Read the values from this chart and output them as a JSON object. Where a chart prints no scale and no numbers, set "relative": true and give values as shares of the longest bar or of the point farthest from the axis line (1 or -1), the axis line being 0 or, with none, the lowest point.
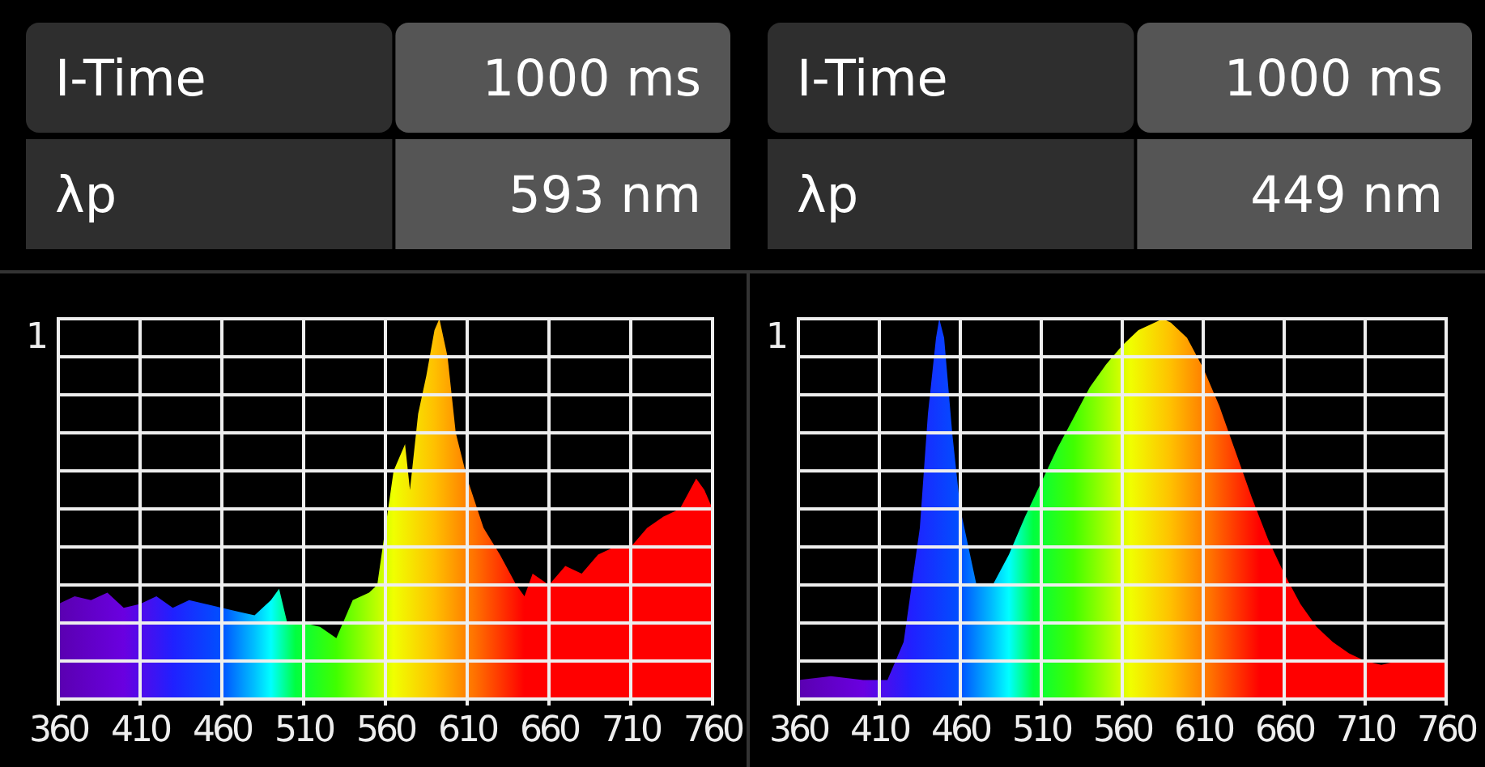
{
  "chart_data": [
    {
      "type": "other",
      "annotations": [
        "I-Time",
        "1000 ms",
        "λp",
        "593 nm"
      ]
    },
    {
      "type": "other",
      "annotations": [
        "I-Time",
        "1000 ms",
        "λp",
        "449 nm"
      ]
    },
    {
      "type": "area",
      "relative": true,
      "grid": true,
      "annotations": [
        "1"
      ],
      "xlim": [
        360,
        760
      ],
      "xticks": [
        360,
        410,
        460,
        510,
        560,
        610,
        660,
        710,
        760
      ],
      "series": [
        {
          "x": [
            360,
            370,
            380,
            390,
            400,
            410,
            420,
            430,
            440,
            450,
            460,
            470,
            480,
            490,
            495,
            500,
            510,
            520,
            530,
            540,
            550,
            555,
            560,
            565,
            572,
            575,
            580,
            585,
            590,
            593,
            598,
            603,
            610,
            620,
            630,
            640,
            645,
            650,
            660,
            670,
            680,
            690,
            700,
            710,
            720,
            730,
            740,
            750,
            755,
            760
          ],
          "values": [
            0.25,
            0.27,
            0.26,
            0.28,
            0.24,
            0.25,
            0.27,
            0.24,
            0.26,
            0.25,
            0.24,
            0.23,
            0.22,
            0.26,
            0.29,
            0.2,
            0.2,
            0.19,
            0.16,
            0.26,
            0.28,
            0.3,
            0.45,
            0.6,
            0.67,
            0.55,
            0.75,
            0.85,
            0.97,
            1,
            0.9,
            0.7,
            0.58,
            0.45,
            0.38,
            0.3,
            0.27,
            0.33,
            0.3,
            0.35,
            0.33,
            0.38,
            0.4,
            0.4,
            0.45,
            0.48,
            0.5,
            0.58,
            0.55,
            0.5
          ]
        }
      ]
    },
    {
      "type": "area",
      "relative": true,
      "grid": true,
      "annotations": [
        "1"
      ],
      "xlim": [
        360,
        760
      ],
      "xticks": [
        360,
        410,
        460,
        510,
        560,
        610,
        660,
        710,
        760
      ],
      "series": [
        {
          "x": [
            360,
            380,
            400,
            415,
            425,
            435,
            440,
            445,
            447,
            450,
            455,
            460,
            470,
            475,
            480,
            490,
            500,
            510,
            520,
            530,
            540,
            550,
            560,
            570,
            580,
            585,
            590,
            600,
            610,
            620,
            630,
            640,
            650,
            660,
            670,
            680,
            690,
            700,
            710,
            720,
            730,
            740,
            750,
            760
          ],
          "values": [
            0.05,
            0.06,
            0.05,
            0.05,
            0.15,
            0.45,
            0.75,
            0.95,
            1,
            0.95,
            0.7,
            0.5,
            0.3,
            0.3,
            0.3,
            0.38,
            0.48,
            0.57,
            0.66,
            0.74,
            0.82,
            0.88,
            0.93,
            0.97,
            0.99,
            1,
            0.99,
            0.95,
            0.87,
            0.77,
            0.65,
            0.53,
            0.42,
            0.33,
            0.25,
            0.19,
            0.15,
            0.12,
            0.1,
            0.09,
            0.1,
            0.1,
            0.1,
            0.1
          ]
        }
      ]
    }
  ]
}
